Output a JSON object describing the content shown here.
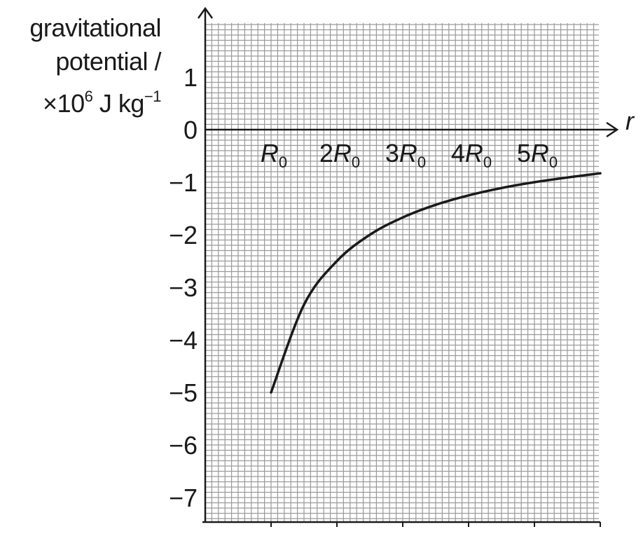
{
  "chart_data": {
    "type": "line",
    "ylabel_lines": [
      "gravitational",
      "potential /"
    ],
    "ylabel_unit": {
      "prefix": "×10",
      "exp": "6",
      "mid": " J kg",
      "exp2": "−1"
    },
    "xlabel": "r",
    "xlim": [
      0,
      6
    ],
    "ylim": [
      -7.5,
      2
    ],
    "y_ticks": [
      {
        "v": 1,
        "label": "1"
      },
      {
        "v": 0,
        "label": "0"
      },
      {
        "v": -1,
        "label": "−1"
      },
      {
        "v": -2,
        "label": "−2"
      },
      {
        "v": -3,
        "label": "−3"
      },
      {
        "v": -4,
        "label": "−4"
      },
      {
        "v": -5,
        "label": "−5"
      },
      {
        "v": -6,
        "label": "−6"
      },
      {
        "v": -7,
        "label": "−7"
      }
    ],
    "x_ticks": [
      {
        "v": 1,
        "coef": "",
        "sym": "R",
        "sub": "0"
      },
      {
        "v": 2,
        "coef": "2",
        "sym": "R",
        "sub": "0"
      },
      {
        "v": 3,
        "coef": "3",
        "sym": "R",
        "sub": "0"
      },
      {
        "v": 4,
        "coef": "4",
        "sym": "R",
        "sub": "0"
      },
      {
        "v": 5,
        "coef": "5",
        "sym": "R",
        "sub": "0"
      }
    ],
    "series": [
      {
        "x": [
          1,
          1.5,
          2,
          2.5,
          3,
          3.5,
          4,
          4.5,
          5,
          5.5,
          6
        ],
        "y": [
          -5.0,
          -3.33,
          -2.5,
          -2.0,
          -1.67,
          -1.43,
          -1.25,
          -1.11,
          -1.0,
          -0.91,
          -0.83
        ]
      }
    ],
    "grid": true,
    "colors": {
      "grid": "#9a9a9a",
      "axis": "#1a1a1a",
      "curve": "#1a1a1a"
    }
  }
}
